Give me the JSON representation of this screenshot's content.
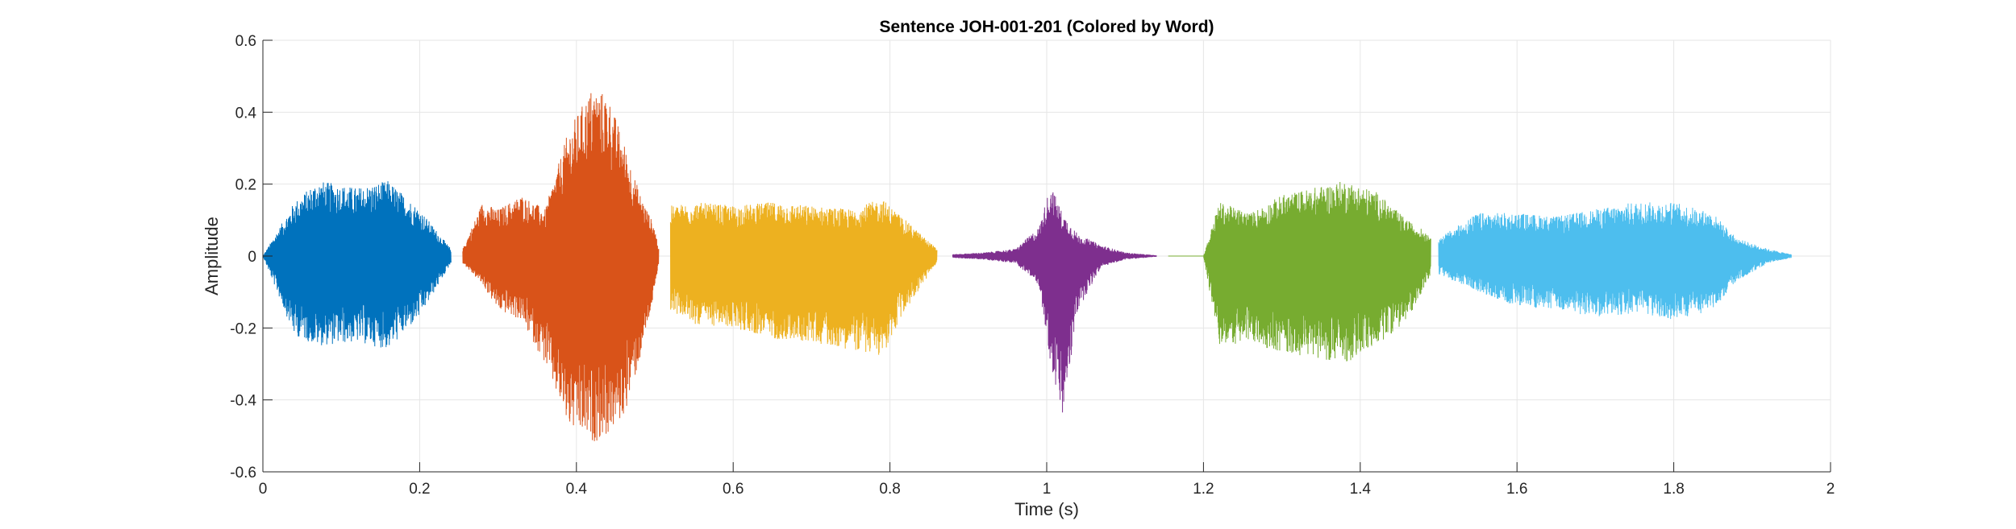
{
  "chart_data": {
    "type": "line",
    "title": "Sentence JOH-001-201 (Colored by Word)",
    "xlabel": "Time (s)",
    "ylabel": "Amplitude",
    "xlim": [
      0,
      2
    ],
    "ylim": [
      -0.6,
      0.6
    ],
    "xticks": [
      0,
      0.2,
      0.4,
      0.6,
      0.8,
      1,
      1.2,
      1.4,
      1.6,
      1.8,
      2
    ],
    "xtick_labels": [
      "0",
      "0.2",
      "0.4",
      "0.6",
      "0.8",
      "1",
      "1.2",
      "1.4",
      "1.6",
      "1.8",
      "2"
    ],
    "yticks": [
      -0.6,
      -0.4,
      -0.2,
      0,
      0.2,
      0.4,
      0.6
    ],
    "ytick_labels": [
      "-0.6",
      "-0.4",
      "-0.2",
      "0",
      "0.2",
      "0.4",
      "0.6"
    ],
    "grid": true,
    "series": [
      {
        "color": "#0072BD",
        "x": [
          0.0,
          0.04,
          0.07,
          0.12,
          0.16,
          0.2,
          0.24
        ],
        "max": [
          0.0,
          0.15,
          0.21,
          0.19,
          0.21,
          0.13,
          0.02
        ],
        "min": [
          0.0,
          -0.22,
          -0.25,
          -0.24,
          -0.26,
          -0.17,
          -0.02
        ]
      },
      {
        "color": "#D95319",
        "x": [
          0.255,
          0.28,
          0.3,
          0.33,
          0.36,
          0.39,
          0.42,
          0.44,
          0.46,
          0.48,
          0.5,
          0.505
        ],
        "max": [
          0.02,
          0.15,
          0.13,
          0.17,
          0.13,
          0.35,
          0.47,
          0.45,
          0.32,
          0.18,
          0.08,
          0.02
        ],
        "min": [
          -0.02,
          -0.08,
          -0.15,
          -0.18,
          -0.3,
          -0.48,
          -0.52,
          -0.5,
          -0.45,
          -0.3,
          -0.1,
          -0.02
        ]
      },
      {
        "color": "#EDB120",
        "x": [
          0.52,
          0.55,
          0.6,
          0.65,
          0.7,
          0.75,
          0.79,
          0.82,
          0.86
        ],
        "max": [
          0.14,
          0.15,
          0.14,
          0.15,
          0.14,
          0.13,
          0.16,
          0.1,
          0.02
        ],
        "min": [
          -0.15,
          -0.19,
          -0.2,
          -0.23,
          -0.24,
          -0.26,
          -0.28,
          -0.15,
          -0.02
        ]
      },
      {
        "color": "#7E2F8E",
        "x": [
          0.88,
          0.92,
          0.96,
          0.99,
          1.005,
          1.02,
          1.04,
          1.07,
          1.1,
          1.14
        ],
        "max": [
          0.005,
          0.01,
          0.02,
          0.08,
          0.2,
          0.12,
          0.06,
          0.03,
          0.01,
          0.002
        ],
        "min": [
          -0.005,
          -0.01,
          -0.02,
          -0.08,
          -0.3,
          -0.46,
          -0.15,
          -0.03,
          -0.01,
          -0.002
        ]
      },
      {
        "color": "#77AC30",
        "x": [
          1.155,
          1.2,
          1.22,
          1.26,
          1.3,
          1.34,
          1.38,
          1.42,
          1.46,
          1.49
        ],
        "max": [
          0.0,
          0.0,
          0.15,
          0.12,
          0.17,
          0.19,
          0.21,
          0.18,
          0.1,
          0.06
        ],
        "min": [
          0.0,
          0.0,
          -0.25,
          -0.24,
          -0.27,
          -0.28,
          -0.3,
          -0.25,
          -0.18,
          -0.05
        ]
      },
      {
        "color": "#4DBEEE",
        "x": [
          1.5,
          1.55,
          1.6,
          1.65,
          1.7,
          1.75,
          1.8,
          1.85,
          1.88,
          1.92,
          1.95
        ],
        "max": [
          0.05,
          0.12,
          0.12,
          0.11,
          0.13,
          0.15,
          0.15,
          0.12,
          0.05,
          0.02,
          0.005
        ],
        "min": [
          -0.05,
          -0.1,
          -0.14,
          -0.15,
          -0.17,
          -0.16,
          -0.18,
          -0.15,
          -0.07,
          -0.02,
          -0.005
        ]
      }
    ]
  }
}
